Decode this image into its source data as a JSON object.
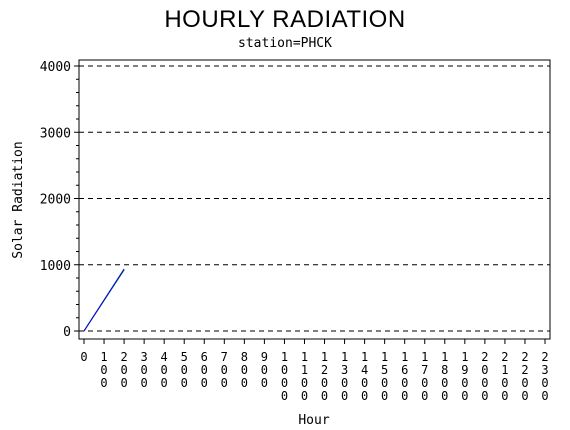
{
  "chart_data": {
    "type": "line",
    "title": "HOURLY RADIATION",
    "subtitle": "station=PHCK",
    "xlabel": "Hour",
    "ylabel": "Solar Radiation",
    "x_ticks": [
      "0",
      "100",
      "200",
      "300",
      "400",
      "500",
      "600",
      "700",
      "800",
      "900",
      "1000",
      "1100",
      "1200",
      "1300",
      "1400",
      "1500",
      "1600",
      "1700",
      "1800",
      "1900",
      "2000",
      "2100",
      "2200",
      "2300"
    ],
    "y_ticks": [
      0,
      1000,
      2000,
      3000,
      4000
    ],
    "xlim": [
      0,
      2300
    ],
    "ylim": [
      0,
      4000
    ],
    "grid": "horizontal dashed",
    "series": [
      {
        "color": "#000000",
        "x": [
          0,
          200
        ],
        "y": [
          0,
          930
        ]
      },
      {
        "color": "#ff0000",
        "x": [
          0,
          200
        ],
        "y": [
          0,
          925
        ]
      },
      {
        "color": "#00aa00",
        "x": [
          0,
          200
        ],
        "y": [
          0,
          920
        ]
      },
      {
        "color": "#0000ff",
        "x": [
          0,
          200
        ],
        "y": [
          0,
          935
        ]
      }
    ]
  }
}
